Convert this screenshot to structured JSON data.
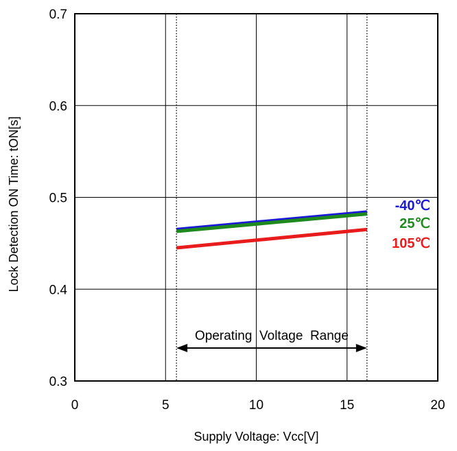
{
  "chart_data": {
    "type": "line",
    "title": "",
    "xlabel": "Supply Voltage: Vcc[V]",
    "ylabel": "Lock Detection ON Time: tON[s]",
    "xlim": [
      0,
      20
    ],
    "ylim": [
      0.3,
      0.7
    ],
    "x_ticks": [
      0,
      5,
      10,
      15,
      20
    ],
    "y_ticks": [
      0.3,
      0.4,
      0.5,
      0.6,
      0.7
    ],
    "x_tick_labels": [
      "0",
      "5",
      "10",
      "15",
      "20"
    ],
    "y_tick_labels": [
      "0.3",
      "0.4",
      "0.5",
      "0.6",
      "0.7"
    ],
    "grid": true,
    "series": [
      {
        "name": "-40℃",
        "color": "#1a1ad6",
        "x": [
          5.6,
          16.1
        ],
        "y": [
          0.465,
          0.484
        ]
      },
      {
        "name": "25℃",
        "color": "#1e8a1e",
        "x": [
          5.6,
          16.1
        ],
        "y": [
          0.463,
          0.482
        ]
      },
      {
        "name": "105℃",
        "color": "#e81c1c",
        "x": [
          5.6,
          16.1
        ],
        "y": [
          0.445,
          0.465
        ]
      }
    ],
    "operating_range": {
      "label": "Operating  Voltage  Range",
      "min": 5.6,
      "max": 16.1
    }
  }
}
